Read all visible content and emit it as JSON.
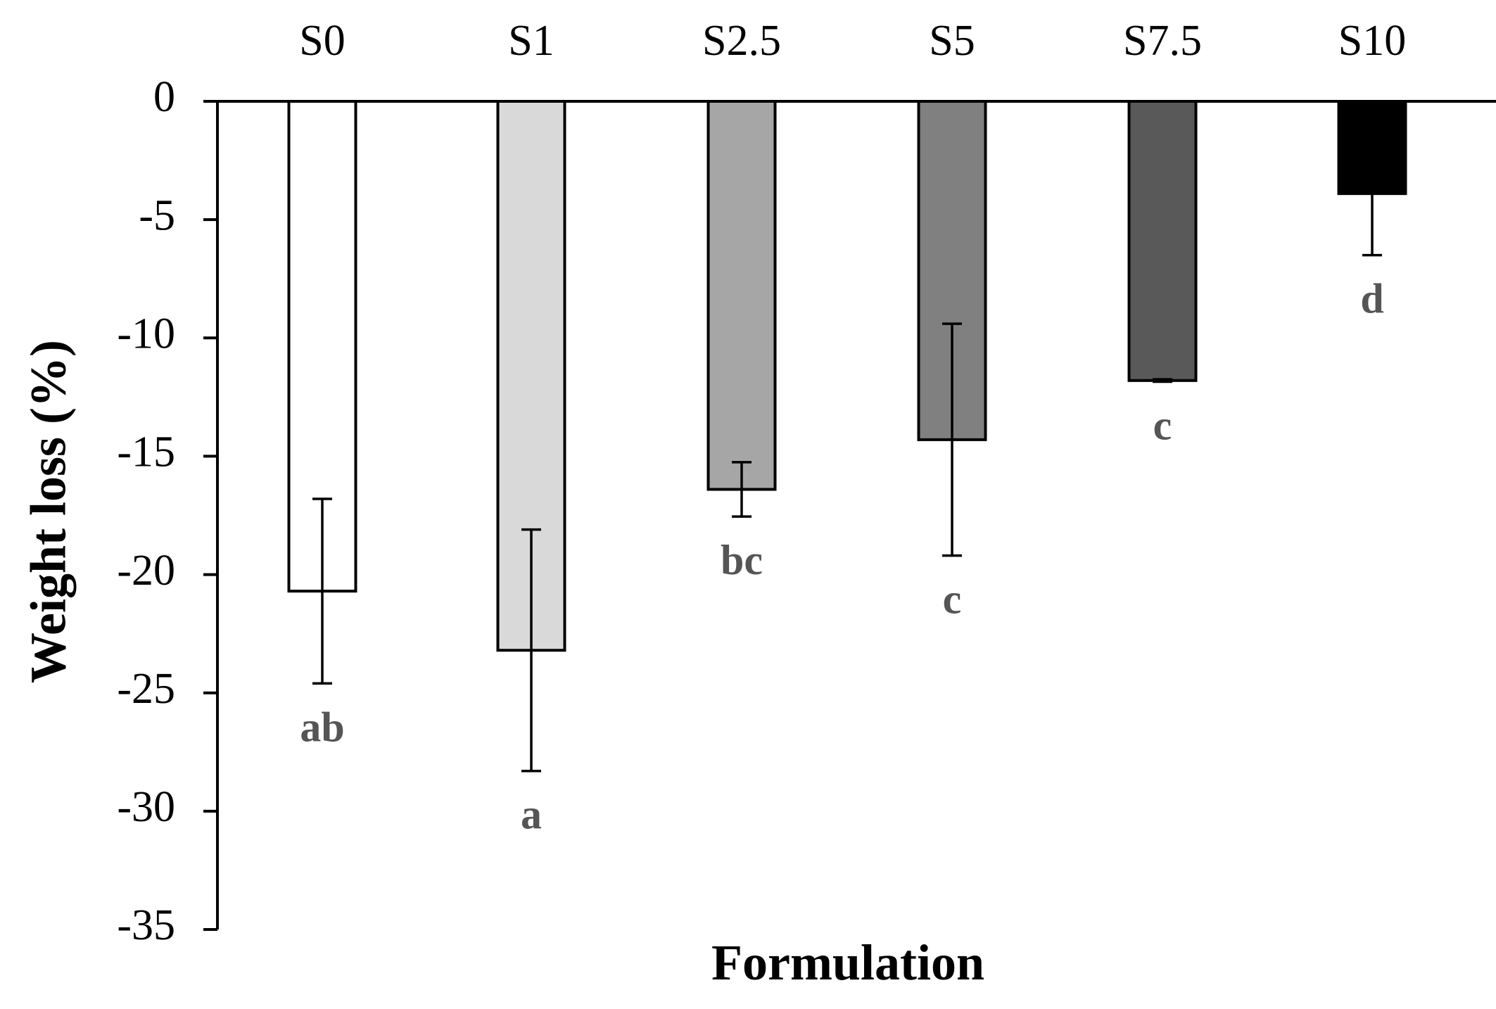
{
  "chart_data": {
    "type": "bar",
    "xlabel": "Formulation",
    "ylabel": "Weight loss (%)",
    "ylim": [
      -35,
      0
    ],
    "yticks": [
      0,
      -5,
      -10,
      -15,
      -20,
      -25,
      -30,
      -35
    ],
    "ytick_labels": [
      "0",
      "-5",
      "-10",
      "-15",
      "-20",
      "-25",
      "-30",
      "-35"
    ],
    "categories": [
      "S0",
      "S1",
      "S2.5",
      "S5",
      "S7.5",
      "S10"
    ],
    "values": [
      -20.7,
      -23.2,
      -16.4,
      -14.3,
      -11.8,
      -3.9
    ],
    "errors": [
      3.9,
      5.1,
      1.15,
      4.9,
      0.05,
      2.6
    ],
    "significance": [
      "ab",
      "a",
      "bc",
      "c",
      "c",
      "d"
    ],
    "bar_colors": [
      "#ffffff",
      "#d9d9d9",
      "#a6a6a6",
      "#808080",
      "#595959",
      "#000000"
    ],
    "grid": false,
    "legend": "none",
    "x_axis_position": "top"
  }
}
